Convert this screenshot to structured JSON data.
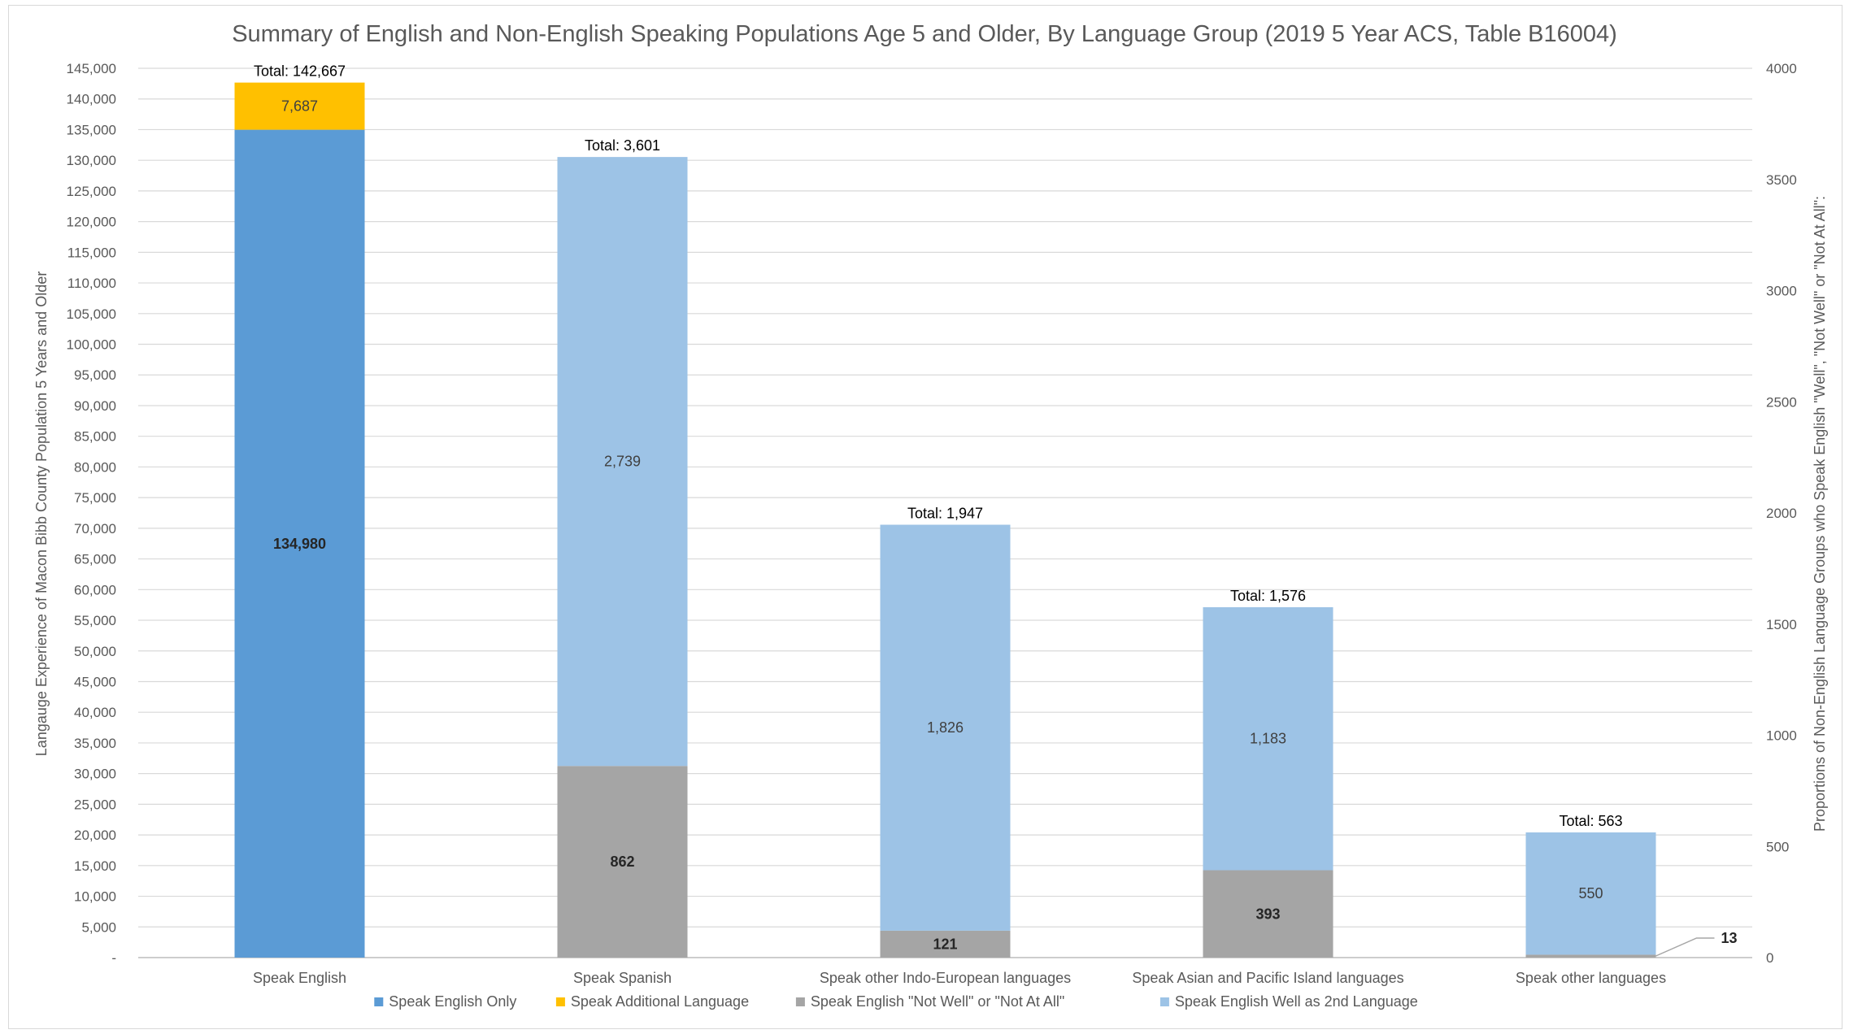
{
  "chart_data": {
    "type": "bar",
    "stacked": true,
    "title": "Summary of English and Non-English Speaking Populations Age 5 and Older, By Language Group (2019 5 Year ACS, Table B16004)",
    "ylabel": "Langauge Experience of Macon Bibb County Population 5 Years and Older",
    "y2label": "Proportions of Non-English Language Groups who Speak English \"Well\", \"Not Well\" or \"Not At All\":",
    "ylim": [
      0,
      145000
    ],
    "y2lim": [
      0,
      4000
    ],
    "yticks": [
      "-",
      "5,000",
      "10,000",
      "15,000",
      "20,000",
      "25,000",
      "30,000",
      "35,000",
      "40,000",
      "45,000",
      "50,000",
      "55,000",
      "60,000",
      "65,000",
      "70,000",
      "75,000",
      "80,000",
      "85,000",
      "90,000",
      "95,000",
      "100,000",
      "105,000",
      "110,000",
      "115,000",
      "120,000",
      "125,000",
      "130,000",
      "135,000",
      "140,000",
      "145,000"
    ],
    "y2ticks": [
      "0",
      "500",
      "1000",
      "1500",
      "2000",
      "2500",
      "3000",
      "3500",
      "4000"
    ],
    "grid": true,
    "legend_position": "bottom",
    "categories": [
      "Speak English",
      "Speak Spanish",
      "Speak other Indo-European languages",
      "Speak Asian and Pacific Island languages",
      "Speak other languages"
    ],
    "series": [
      {
        "name": "Speak English Only",
        "axis": "primary",
        "color": "#5b9bd5",
        "values": [
          134980,
          null,
          null,
          null,
          null
        ],
        "labels": [
          "134,980",
          "",
          "",
          "",
          ""
        ]
      },
      {
        "name": "Speak Additional Language",
        "axis": "primary",
        "color": "#ffc000",
        "values": [
          7687,
          null,
          null,
          null,
          null
        ],
        "labels": [
          "7,687",
          "",
          "",
          "",
          ""
        ]
      },
      {
        "name": "Speak English \"Not Well\" or \"Not At All\"",
        "axis": "secondary",
        "color": "#a5a5a5",
        "values": [
          null,
          862,
          121,
          393,
          13
        ],
        "labels": [
          "",
          "862",
          "121",
          "393",
          "13"
        ]
      },
      {
        "name": "Speak English Well as 2nd Language",
        "axis": "secondary",
        "color": "#9dc3e6",
        "values": [
          null,
          2739,
          1826,
          1183,
          550
        ],
        "labels": [
          "",
          "2,739",
          "1,826",
          "1,183",
          "550"
        ]
      }
    ],
    "totals": [
      {
        "prefix": "Total:",
        "value": "142,667"
      },
      {
        "prefix": "Total:",
        "value": "3,601"
      },
      {
        "prefix": "Total:",
        "value": "1,947"
      },
      {
        "prefix": "Total:",
        "value": "1,576"
      },
      {
        "prefix": "Total:",
        "value": "563"
      }
    ]
  }
}
